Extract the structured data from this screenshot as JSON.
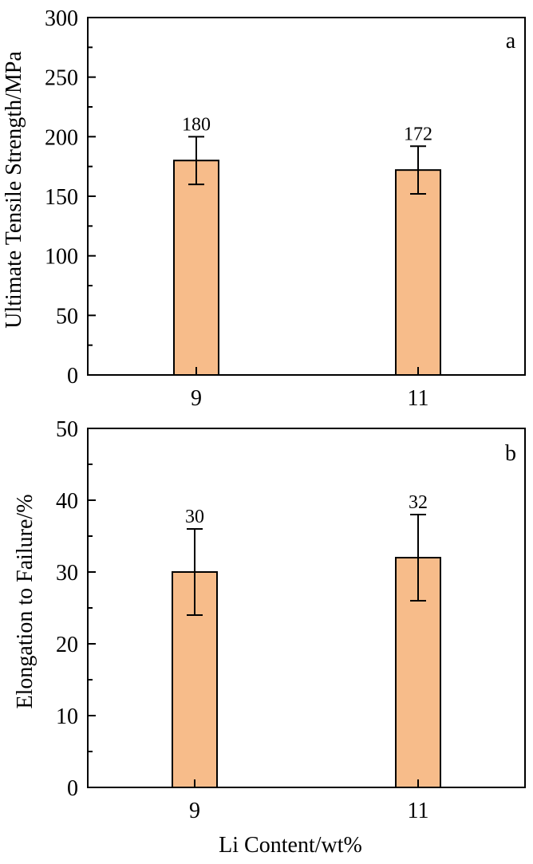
{
  "colors": {
    "bar_fill": "#F7BC8A",
    "stroke": "#000000",
    "background": "#FFFFFF"
  },
  "chart_data": [
    {
      "type": "bar",
      "panel_label": "a",
      "categories": [
        "9",
        "11"
      ],
      "values": [
        180,
        172
      ],
      "error": [
        20,
        20
      ],
      "data_labels": [
        "180",
        "172"
      ],
      "ylabel": "Ultimate Tensile Strength/MPa",
      "xlabel": "",
      "ylim": [
        0,
        300
      ],
      "yticks": [
        0,
        50,
        100,
        150,
        200,
        250,
        300
      ],
      "ytick_labels": [
        "0",
        "50",
        "100",
        "150",
        "200",
        "250",
        "300"
      ],
      "grid": false
    },
    {
      "type": "bar",
      "panel_label": "b",
      "categories": [
        "9",
        "11"
      ],
      "values": [
        30,
        32
      ],
      "error": [
        6,
        6
      ],
      "data_labels": [
        "30",
        "32"
      ],
      "ylabel": "Elongation to Failure/%",
      "xlabel": "Li Content/wt%",
      "ylim": [
        0,
        50
      ],
      "yticks": [
        0,
        10,
        20,
        30,
        40,
        50
      ],
      "ytick_labels": [
        "0",
        "10",
        "20",
        "30",
        "40",
        "50"
      ],
      "grid": false
    }
  ]
}
